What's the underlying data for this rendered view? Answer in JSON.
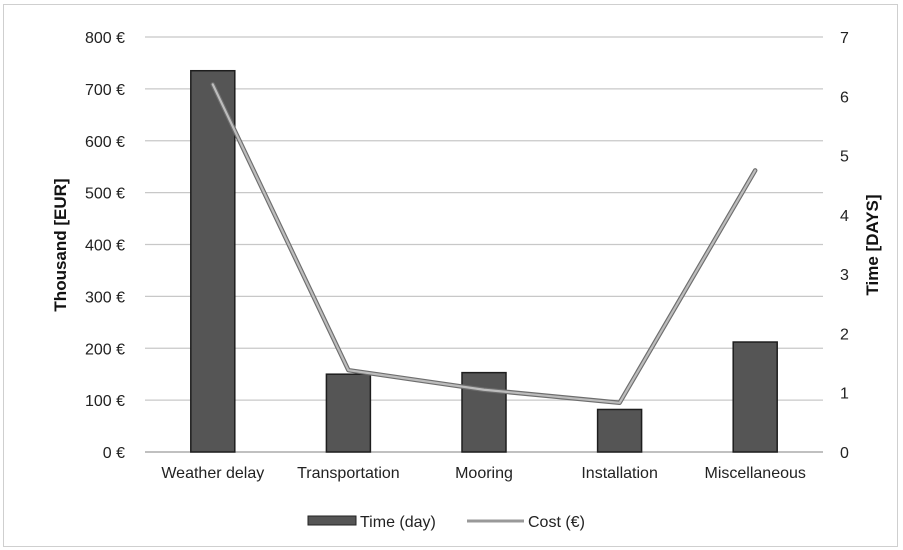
{
  "chart_data": {
    "type": "bar",
    "categories": [
      "Weather delay",
      "Transportation",
      "Mooring",
      "Installation",
      "Miscellaneous"
    ],
    "series": [
      {
        "name": "Time (day)",
        "type": "bar",
        "axis": "left",
        "values": [
          735,
          150,
          153,
          82,
          212
        ],
        "color": "#555555"
      },
      {
        "name": "Cost (€)",
        "type": "line",
        "axis": "right",
        "values": [
          6.2,
          1.38,
          1.05,
          0.83,
          4.75
        ],
        "color": "#999999"
      }
    ],
    "ylabel": "Thousand  [EUR]",
    "ylabel_right": "Time  [DAYS]",
    "ylim": [
      0,
      800
    ],
    "ylim_right": [
      0,
      7
    ],
    "yticks": [
      "0 €",
      "100 €",
      "200 €",
      "300 €",
      "400 €",
      "500 €",
      "600 €",
      "700 €",
      "800 €"
    ],
    "yticks_right": [
      "0",
      "1",
      "2",
      "3",
      "4",
      "5",
      "6",
      "7"
    ],
    "grid": true,
    "legend_position": "bottom"
  }
}
